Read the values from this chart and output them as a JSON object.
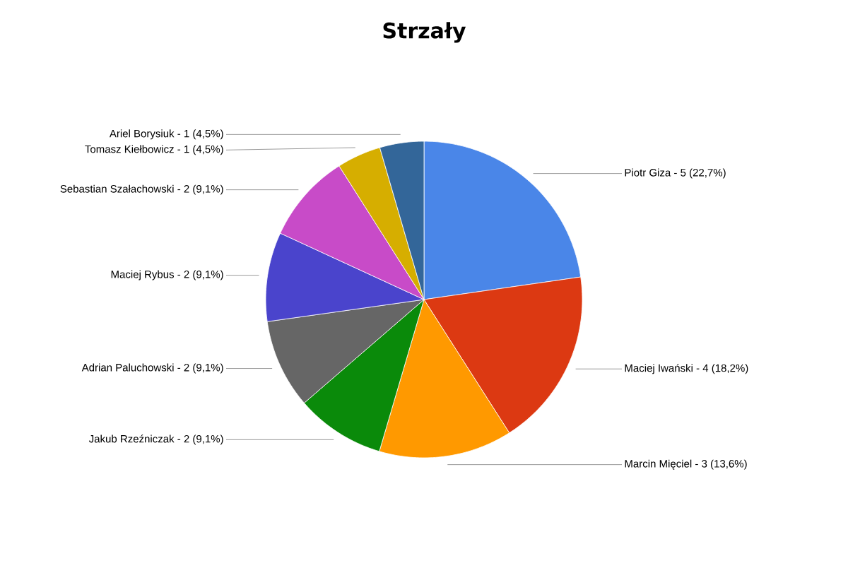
{
  "chart_data": {
    "type": "pie",
    "title": "Strzały",
    "categories": [
      "Piotr Giza - 5 (22,7%)",
      "Maciej Iwański - 4 (18,2%)",
      "Marcin Mięciel - 3 (13,6%)",
      "Jakub Rzeźniczak - 2 (9,1%)",
      "Adrian Paluchowski - 2 (9,1%)",
      "Maciej Rybus - 2 (9,1%)",
      "Sebastian Szałachowski - 2 (9,1%)",
      "Tomasz Kiełbowicz - 1 (4,5%)",
      "Ariel Borysiuk - 1 (4,5%)"
    ],
    "values": [
      22.7,
      18.2,
      13.6,
      9.1,
      9.1,
      9.1,
      9.1,
      4.5,
      4.5
    ],
    "colors": [
      "#4a86e8",
      "#dc3912",
      "#ff9900",
      "#0a8a0a",
      "#666666",
      "#4a44cc",
      "#c84bc8",
      "#d6ae00",
      "#336699"
    ]
  }
}
